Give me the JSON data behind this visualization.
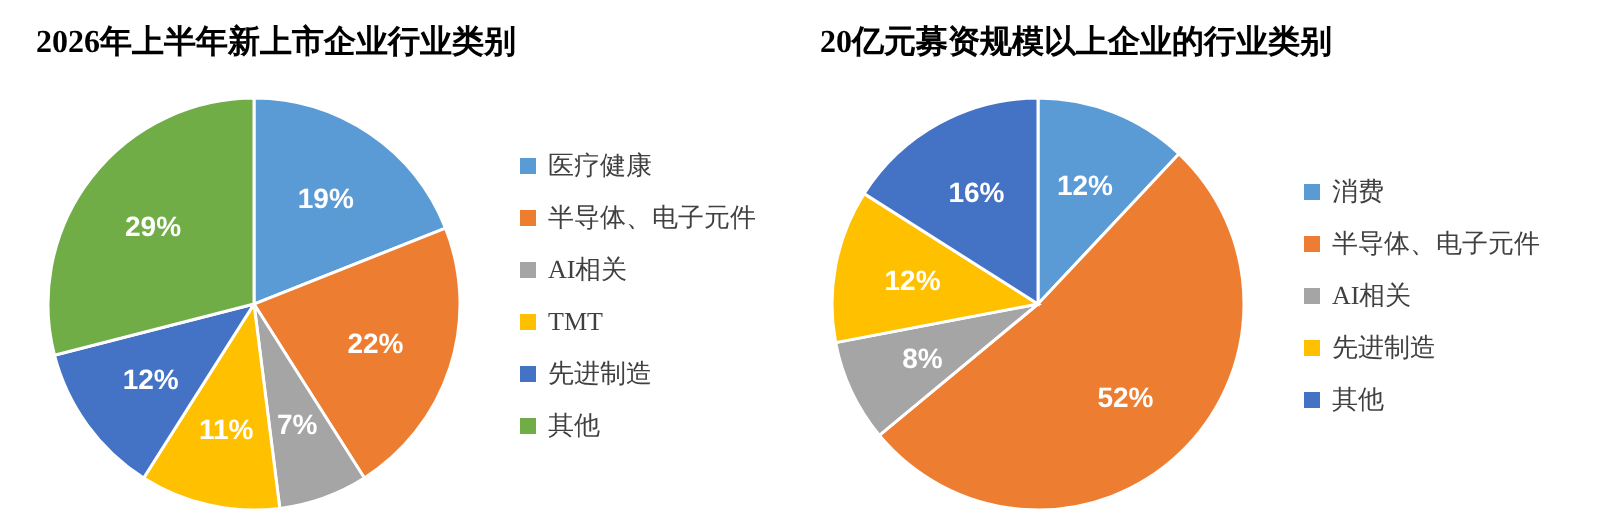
{
  "chart_data": [
    {
      "type": "pie",
      "title": "2026年上半年新上市企业行业类别",
      "categories": [
        "医疗健康",
        "半导体、电子元件",
        "AI相关",
        "TMT",
        "先进制造",
        "其他"
      ],
      "values": [
        19,
        22,
        7,
        11,
        12,
        29
      ],
      "value_labels": [
        "19%",
        "22%",
        "7%",
        "11%",
        "12%",
        "29%"
      ],
      "colors": [
        "#5b9bd5",
        "#ed7d31",
        "#a5a5a5",
        "#ffc000",
        "#4472c4",
        "#70ad47"
      ],
      "legend": "right"
    },
    {
      "type": "pie",
      "title": "20亿元募资规模以上企业的行业类别",
      "categories": [
        "消费",
        "半导体、电子元件",
        "AI相关",
        "先进制造",
        "其他"
      ],
      "values": [
        12,
        52,
        8,
        12,
        16
      ],
      "value_labels": [
        "12%",
        "52%",
        "8%",
        "12%",
        "16%"
      ],
      "colors": [
        "#5b9bd5",
        "#ed7d31",
        "#a5a5a5",
        "#ffc000",
        "#4472c4"
      ],
      "legend": "right"
    }
  ]
}
